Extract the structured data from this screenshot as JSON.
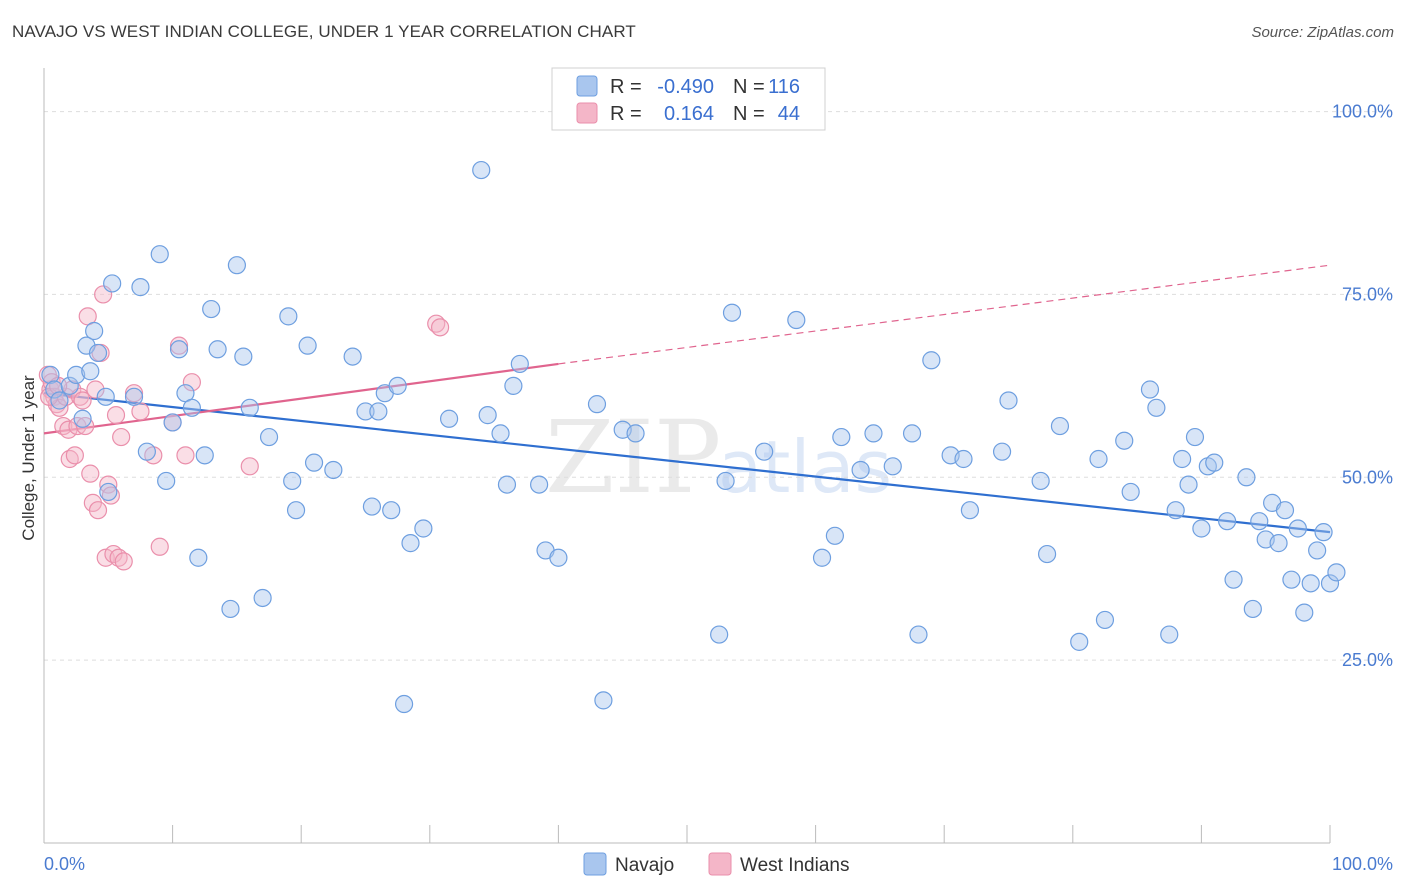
{
  "title": "NAVAJO VS WEST INDIAN COLLEGE, UNDER 1 YEAR CORRELATION CHART",
  "source": "Source: ZipAtlas.com",
  "watermark": {
    "zip": "ZIP",
    "atlas": "atlas"
  },
  "colors": {
    "navajo_fill": "#a9c6ee",
    "navajo_stroke": "#6e9fe0",
    "navajo_line": "#2f6fd0",
    "west_fill": "#f4b6c8",
    "west_stroke": "#ea8fab",
    "west_line": "#e0648e",
    "tick_label": "#4a7bd0",
    "grid": "#dddddd"
  },
  "legend": {
    "row1": {
      "r_label": "R =",
      "r_value": "-0.490",
      "n_label": "N =",
      "n_value": "116"
    },
    "row2": {
      "r_label": "R =",
      "r_value": "0.164",
      "n_label": "N =",
      "n_value": "44"
    }
  },
  "chart_data": {
    "type": "scatter",
    "ylabel": "College, Under 1 year",
    "xlim": [
      0,
      100
    ],
    "ylim": [
      0,
      105
    ],
    "x_tick_labels": [
      {
        "value": 0,
        "label": "0.0%"
      },
      {
        "value": 100,
        "label": "100.0%"
      }
    ],
    "y_tick_labels": [
      {
        "value": 25,
        "label": "25.0%"
      },
      {
        "value": 50,
        "label": "50.0%"
      },
      {
        "value": 75,
        "label": "75.0%"
      },
      {
        "value": 100,
        "label": "100.0%"
      }
    ],
    "grid": "horizontal dashed",
    "series": [
      {
        "name": "Navajo",
        "trend": {
          "x": [
            0,
            100
          ],
          "y": [
            61.5,
            42.5
          ],
          "dashed_extension": false
        },
        "points": [
          [
            0.5,
            64
          ],
          [
            0.8,
            62
          ],
          [
            1.2,
            60.5
          ],
          [
            2.0,
            62.5
          ],
          [
            2.5,
            64
          ],
          [
            3.0,
            58
          ],
          [
            3.3,
            68
          ],
          [
            3.6,
            64.5
          ],
          [
            3.9,
            70
          ],
          [
            4.2,
            67
          ],
          [
            4.8,
            61
          ],
          [
            5.0,
            48
          ],
          [
            5.3,
            76.5
          ],
          [
            7.0,
            61
          ],
          [
            7.5,
            76
          ],
          [
            8.0,
            53.5
          ],
          [
            9.0,
            80.5
          ],
          [
            9.5,
            49.5
          ],
          [
            10.0,
            57.5
          ],
          [
            10.5,
            67.5
          ],
          [
            11.0,
            61.5
          ],
          [
            11.5,
            59.5
          ],
          [
            12.0,
            39
          ],
          [
            12.5,
            53
          ],
          [
            13.0,
            73
          ],
          [
            13.5,
            67.5
          ],
          [
            14.5,
            32
          ],
          [
            15.0,
            79
          ],
          [
            15.5,
            66.5
          ],
          [
            16.0,
            59.5
          ],
          [
            17.0,
            33.5
          ],
          [
            17.5,
            55.5
          ],
          [
            19.0,
            72
          ],
          [
            19.3,
            49.5
          ],
          [
            19.6,
            45.5
          ],
          [
            20.5,
            68
          ],
          [
            21.0,
            52
          ],
          [
            22.5,
            51
          ],
          [
            24.0,
            66.5
          ],
          [
            25.0,
            59
          ],
          [
            25.5,
            46
          ],
          [
            26.0,
            59
          ],
          [
            26.5,
            61.5
          ],
          [
            27.0,
            45.5
          ],
          [
            27.5,
            62.5
          ],
          [
            28.0,
            19
          ],
          [
            28.5,
            41
          ],
          [
            29.5,
            43
          ],
          [
            31.5,
            58
          ],
          [
            34.0,
            92
          ],
          [
            34.5,
            58.5
          ],
          [
            35.5,
            56
          ],
          [
            36.0,
            49
          ],
          [
            36.5,
            62.5
          ],
          [
            37.0,
            65.5
          ],
          [
            38.5,
            49
          ],
          [
            39.0,
            40
          ],
          [
            40.0,
            39
          ],
          [
            43.0,
            60
          ],
          [
            43.5,
            19.5
          ],
          [
            45.0,
            56.5
          ],
          [
            46.0,
            56
          ],
          [
            52.5,
            28.5
          ],
          [
            53.0,
            49.5
          ],
          [
            53.5,
            72.5
          ],
          [
            56.0,
            53.5
          ],
          [
            58.5,
            71.5
          ],
          [
            60.5,
            39
          ],
          [
            61.5,
            42
          ],
          [
            62.0,
            55.5
          ],
          [
            63.5,
            51
          ],
          [
            64.5,
            56
          ],
          [
            66.0,
            51.5
          ],
          [
            67.5,
            56
          ],
          [
            68.0,
            28.5
          ],
          [
            69.0,
            66
          ],
          [
            70.5,
            53
          ],
          [
            71.5,
            52.5
          ],
          [
            72.0,
            45.5
          ],
          [
            74.5,
            53.5
          ],
          [
            75.0,
            60.5
          ],
          [
            77.5,
            49.5
          ],
          [
            78.0,
            39.5
          ],
          [
            79.0,
            57
          ],
          [
            80.5,
            27.5
          ],
          [
            82.0,
            52.5
          ],
          [
            82.5,
            30.5
          ],
          [
            84.0,
            55
          ],
          [
            84.5,
            48
          ],
          [
            86.0,
            62
          ],
          [
            86.5,
            59.5
          ],
          [
            87.5,
            28.5
          ],
          [
            88.0,
            45.5
          ],
          [
            88.5,
            52.5
          ],
          [
            89.0,
            49
          ],
          [
            89.5,
            55.5
          ],
          [
            90.0,
            43
          ],
          [
            90.5,
            51.5
          ],
          [
            91.0,
            52
          ],
          [
            92.0,
            44
          ],
          [
            92.5,
            36
          ],
          [
            93.5,
            50
          ],
          [
            94.0,
            32
          ],
          [
            94.5,
            44
          ],
          [
            95.0,
            41.5
          ],
          [
            95.5,
            46.5
          ],
          [
            96.0,
            41
          ],
          [
            96.5,
            45.5
          ],
          [
            97.0,
            36
          ],
          [
            97.5,
            43
          ],
          [
            98.0,
            31.5
          ],
          [
            98.5,
            35.5
          ],
          [
            99.0,
            40
          ],
          [
            99.5,
            42.5
          ],
          [
            100.0,
            35.5
          ],
          [
            100.5,
            37
          ]
        ]
      },
      {
        "name": "West Indians",
        "trend": {
          "x": [
            0,
            40
          ],
          "y": [
            56,
            65.5
          ],
          "dashed_extension_to": [
            100,
            79
          ]
        },
        "points": [
          [
            0.3,
            64
          ],
          [
            0.5,
            62
          ],
          [
            0.6,
            63
          ],
          [
            0.8,
            61
          ],
          [
            1.0,
            60
          ],
          [
            1.2,
            59.5
          ],
          [
            1.5,
            57
          ],
          [
            1.7,
            61
          ],
          [
            1.9,
            56.5
          ],
          [
            2.0,
            52.5
          ],
          [
            2.2,
            62
          ],
          [
            2.4,
            53
          ],
          [
            2.6,
            57
          ],
          [
            2.8,
            61
          ],
          [
            3.0,
            60.5
          ],
          [
            3.2,
            57
          ],
          [
            3.4,
            72
          ],
          [
            3.6,
            50.5
          ],
          [
            3.8,
            46.5
          ],
          [
            4.0,
            62
          ],
          [
            4.2,
            45.5
          ],
          [
            4.4,
            67
          ],
          [
            4.6,
            75
          ],
          [
            4.8,
            39
          ],
          [
            5.0,
            49
          ],
          [
            5.2,
            47.5
          ],
          [
            5.4,
            39.5
          ],
          [
            5.6,
            58.5
          ],
          [
            5.8,
            39
          ],
          [
            6.0,
            55.5
          ],
          [
            6.2,
            38.5
          ],
          [
            7.0,
            61.5
          ],
          [
            7.5,
            59
          ],
          [
            8.5,
            53
          ],
          [
            9.0,
            40.5
          ],
          [
            10.0,
            57.5
          ],
          [
            10.5,
            68
          ],
          [
            11.0,
            53
          ],
          [
            11.5,
            63
          ],
          [
            16.0,
            51.5
          ],
          [
            30.5,
            71
          ],
          [
            30.8,
            70.5
          ],
          [
            0.4,
            61
          ],
          [
            1.1,
            62.5
          ]
        ]
      }
    ],
    "legend_position": "top-center"
  }
}
